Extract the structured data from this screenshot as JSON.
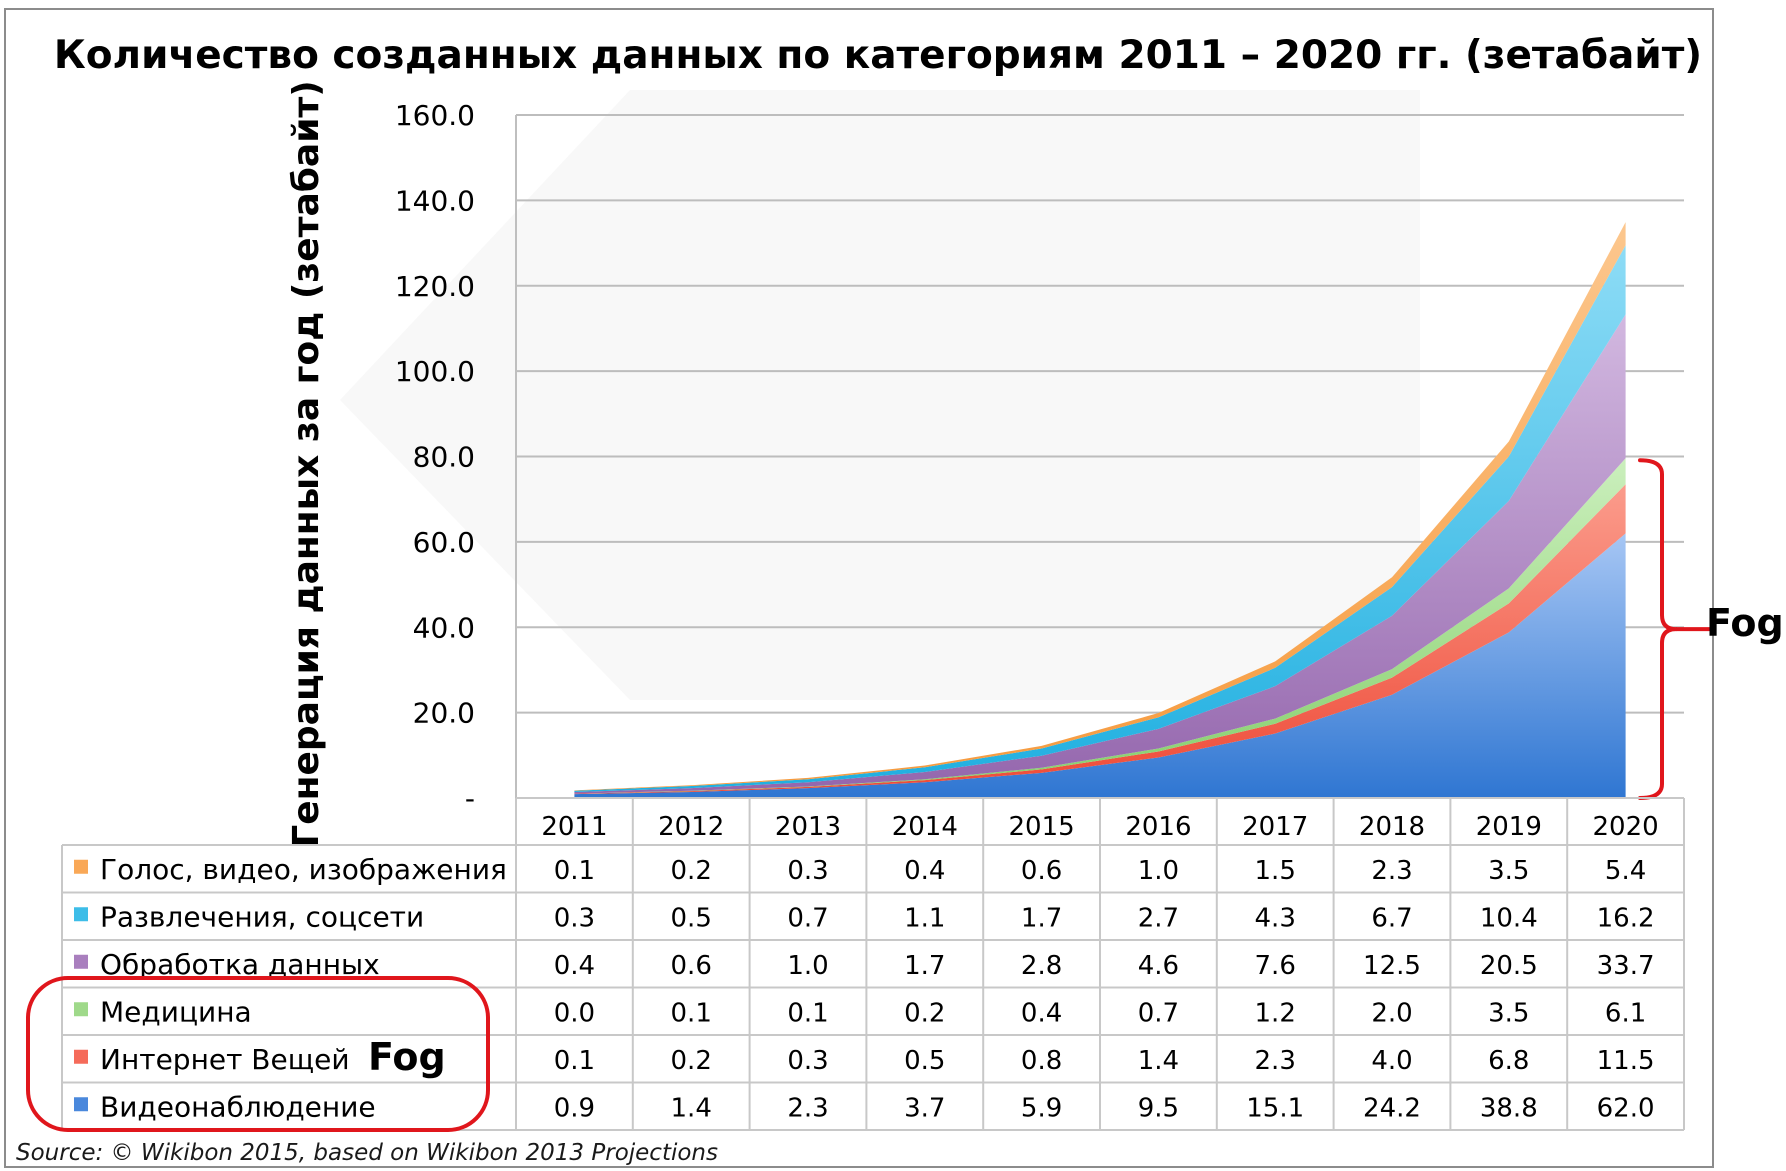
{
  "chart_data": {
    "type": "area",
    "stacked": true,
    "title": "Количество созданных данных по категориям 2011 – 2020 гг. (зетабайт)",
    "ylabel": "Генерация данных за год (зетабайт)",
    "xlabel": "",
    "ylim": [
      0,
      160
    ],
    "yticks": [
      {
        "value": 0,
        "label": "-"
      },
      {
        "value": 20,
        "label": "20.0"
      },
      {
        "value": 40,
        "label": "40.0"
      },
      {
        "value": 60,
        "label": "60.0"
      },
      {
        "value": 80,
        "label": "80.0"
      },
      {
        "value": 100,
        "label": "100.0"
      },
      {
        "value": 120,
        "label": "120.0"
      },
      {
        "value": 140,
        "label": "140.0"
      },
      {
        "value": 160,
        "label": "160.0"
      }
    ],
    "grid": true,
    "categories": [
      "2011",
      "2012",
      "2013",
      "2014",
      "2015",
      "2016",
      "2017",
      "2018",
      "2019",
      "2020"
    ],
    "series": [
      {
        "name": "Голос, видео, изображения",
        "color": "#f9a857",
        "values": [
          "0.1",
          "0.2",
          "0.3",
          "0.4",
          "0.6",
          "1.0",
          "1.5",
          "2.3",
          "3.5",
          "5.4"
        ]
      },
      {
        "name": "Развлечения, соцсети",
        "color": "#3dbde8",
        "values": [
          "0.3",
          "0.5",
          "0.7",
          "1.1",
          "1.7",
          "2.7",
          "4.3",
          "6.7",
          "10.4",
          "16.2"
        ]
      },
      {
        "name": "Обработка данных",
        "color": "#a97fbe",
        "values": [
          "0.4",
          "0.6",
          "1.0",
          "1.7",
          "2.8",
          "4.6",
          "7.6",
          "12.5",
          "20.5",
          "33.7"
        ]
      },
      {
        "name": "Медицина",
        "color": "#9fd98a",
        "values": [
          "0.0",
          "0.1",
          "0.1",
          "0.2",
          "0.4",
          "0.7",
          "1.2",
          "2.0",
          "3.5",
          "6.1"
        ]
      },
      {
        "name": "Интернет Вещей",
        "color": "#f56b5a",
        "values": [
          "0.1",
          "0.2",
          "0.3",
          "0.5",
          "0.8",
          "1.4",
          "2.3",
          "4.0",
          "6.8",
          "11.5"
        ]
      },
      {
        "name": "Видеонаблюдение",
        "color": "#4a88dc",
        "values": [
          "0.9",
          "1.4",
          "2.3",
          "3.7",
          "5.9",
          "9.5",
          "15.1",
          "24.2",
          "38.8",
          "62.0"
        ]
      }
    ],
    "annotations": {
      "fog_bracket_label": "Fog",
      "fog_table_label": "Fog",
      "bracket_color": "#e0161c"
    },
    "source": "Source: © Wikibon 2015, based on Wikibon 2013 Projections"
  }
}
